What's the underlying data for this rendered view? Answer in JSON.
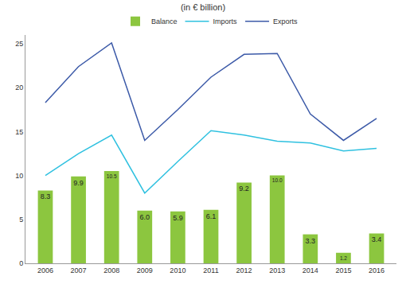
{
  "chart_data": {
    "type": "combo",
    "title": "(in € billion)",
    "categories": [
      "2006",
      "2007",
      "2008",
      "2009",
      "2010",
      "2011",
      "2012",
      "2013",
      "2014",
      "2015",
      "2016"
    ],
    "series": [
      {
        "name": "Balance",
        "type": "bar",
        "color": "#8cc63f",
        "values": [
          8.3,
          9.9,
          10.5,
          6.0,
          5.9,
          6.1,
          9.2,
          10.0,
          3.3,
          1.2,
          3.4
        ],
        "value_labels": [
          "8.3",
          "9.9",
          "10.5",
          "6.0",
          "5.9",
          "6.1",
          "9.2",
          "10.0",
          "3.3",
          "1.2",
          "3.4"
        ],
        "data_labels": true
      },
      {
        "name": "Imports",
        "type": "line",
        "color": "#2fc1e0",
        "values": [
          10.0,
          12.5,
          14.6,
          8.0,
          11.6,
          15.1,
          14.6,
          13.9,
          13.7,
          12.8,
          13.1
        ]
      },
      {
        "name": "Exports",
        "type": "line",
        "color": "#3c5aa8",
        "values": [
          18.3,
          22.4,
          25.1,
          14.0,
          17.5,
          21.2,
          23.8,
          23.9,
          17.0,
          14.0,
          16.5
        ]
      }
    ],
    "ylim": [
      0,
      26
    ],
    "yticks": [
      0,
      5,
      10,
      15,
      20,
      25
    ],
    "grid": false,
    "legend": "top"
  }
}
